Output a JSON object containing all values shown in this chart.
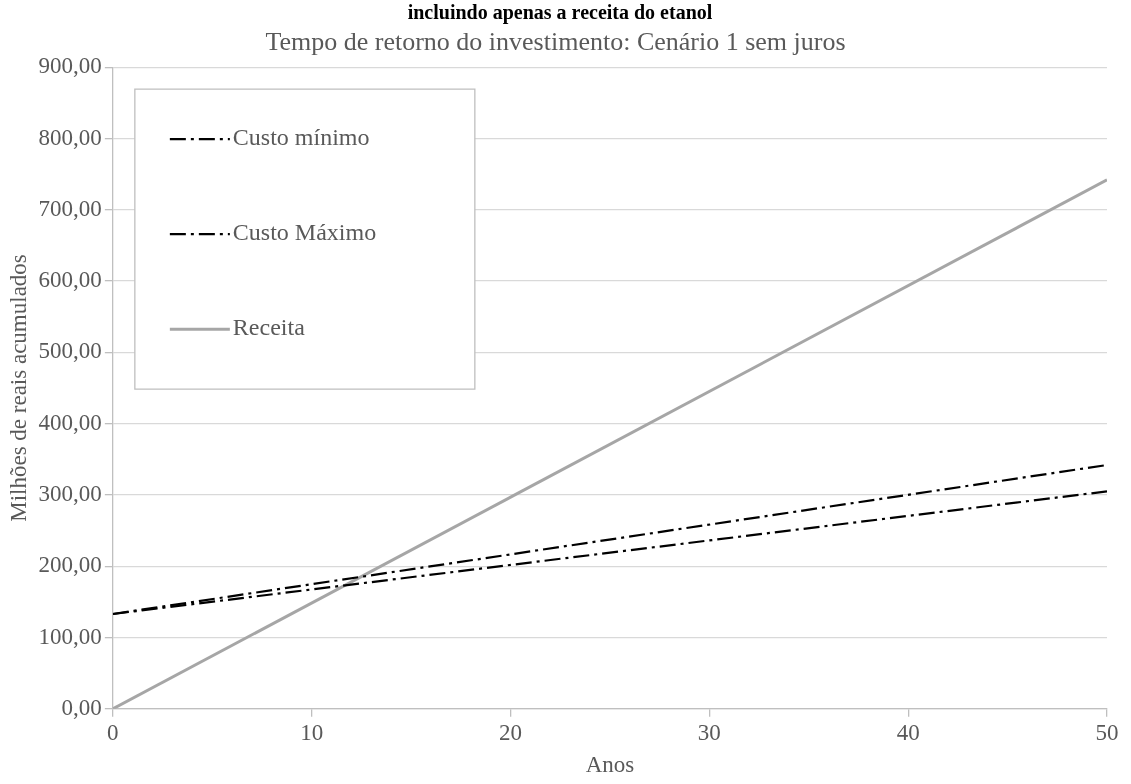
{
  "chart_data": {
    "type": "line",
    "title": "Tempo de retorno do investimento: Cenário 1 sem juros",
    "xlabel": "Anos",
    "ylabel": "Milhões de reais acumulados",
    "annotations": [
      "incluindo apenas a receita do etanol"
    ],
    "x": [
      0,
      50
    ],
    "series": [
      {
        "name": "Custo mínimo",
        "color": "#000000",
        "values": [
          133,
          305
        ],
        "line_style": "dashed"
      },
      {
        "name": "Custo Máximo",
        "color": "#000000",
        "values": [
          133,
          342
        ],
        "line_style": "dashed"
      },
      {
        "name": "Receita",
        "color": "#a6a6a6",
        "values": [
          0,
          742
        ],
        "line_style": "solid"
      }
    ],
    "xlim": [
      0,
      50
    ],
    "xticks": [
      0,
      10,
      20,
      30,
      40,
      50
    ],
    "ylim": [
      0,
      900
    ],
    "yticks": [
      {
        "value": 0,
        "label": "0,00"
      },
      {
        "value": 100,
        "label": "100,00"
      },
      {
        "value": 200,
        "label": "200,00"
      },
      {
        "value": 300,
        "label": "300,00"
      },
      {
        "value": 400,
        "label": "400,00"
      },
      {
        "value": 500,
        "label": "500,00"
      },
      {
        "value": 600,
        "label": "600,00"
      },
      {
        "value": 700,
        "label": "700,00"
      },
      {
        "value": 800,
        "label": "800,00"
      },
      {
        "value": 900,
        "label": "900,00"
      }
    ],
    "grid": "y",
    "legend": "top left",
    "marker": "none"
  }
}
